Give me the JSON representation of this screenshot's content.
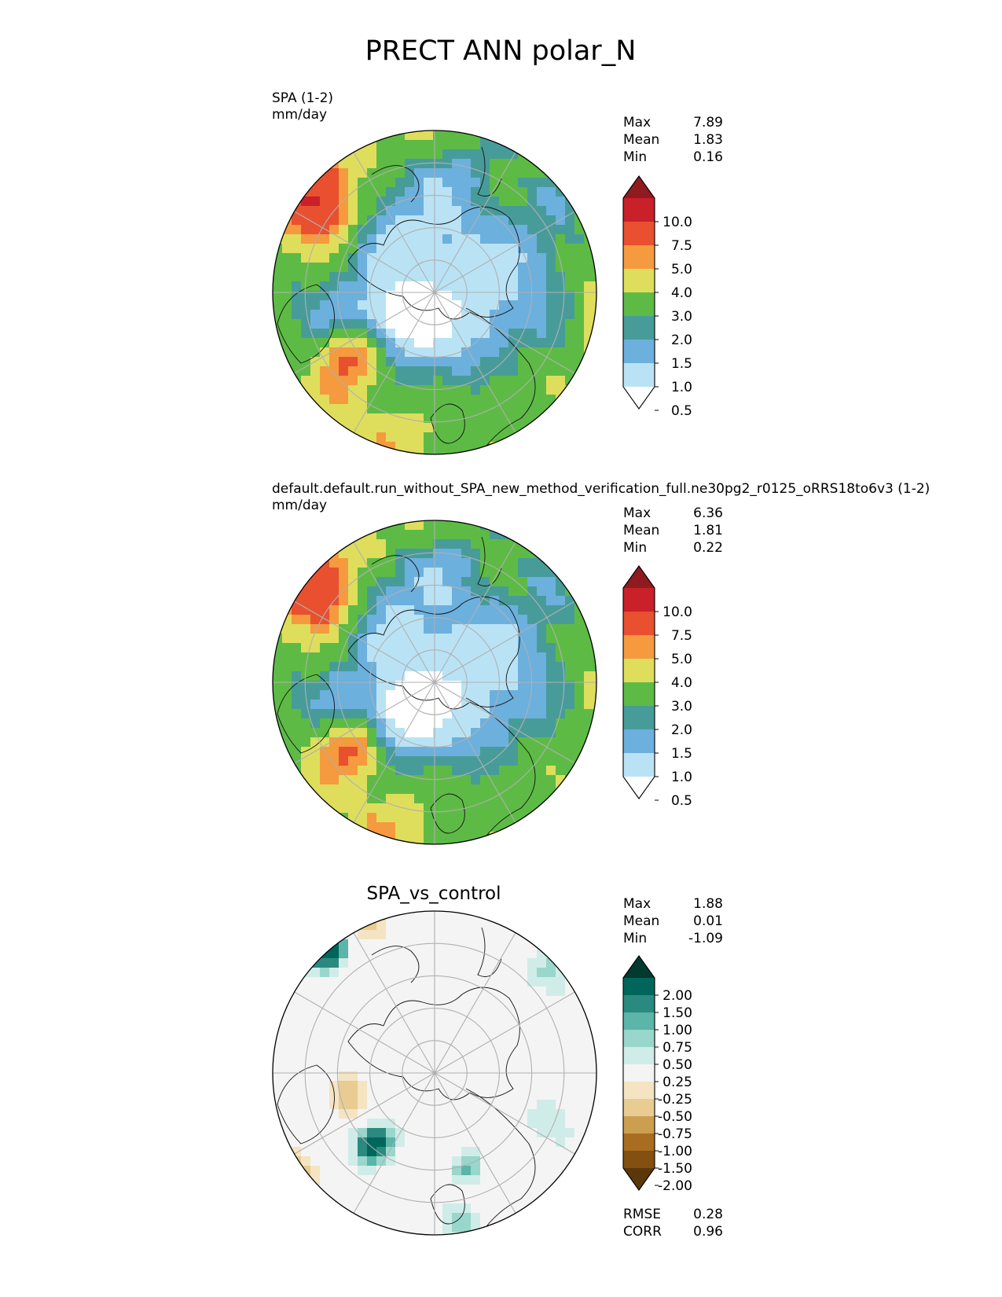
{
  "figure": {
    "title": "PRECT ANN polar_N"
  },
  "chart_data": [
    {
      "type": "heatmap",
      "projection": "north-polar-stereographic",
      "title": "SPA (1-2)",
      "units": "mm/day",
      "stats": [
        {
          "label": "Max",
          "value": "7.89"
        },
        {
          "label": "Mean",
          "value": "1.83"
        },
        {
          "label": "Min",
          "value": "0.16"
        }
      ],
      "colorbar": {
        "extend": "both",
        "levels": [
          "10.0",
          "7.5",
          "5.0",
          "4.0",
          "3.0",
          "2.0",
          "1.5",
          "1.0",
          "0.5"
        ],
        "colors": [
          "#8f1a1f",
          "#c9202a",
          "#e8502f",
          "#f59a3e",
          "#dede5c",
          "#5dbb45",
          "#479c9a",
          "#6cb0de",
          "#b9e3f5",
          "#ffffff"
        ]
      },
      "grid": true,
      "coastlines": true,
      "pattern": "spa"
    },
    {
      "type": "heatmap",
      "projection": "north-polar-stereographic",
      "title": "default.default.run_without_SPA_new_method_verification_full.ne30pg2_r0125_oRRS18to6v3 (1-2)",
      "units": "mm/day",
      "stats": [
        {
          "label": "Max",
          "value": "6.36"
        },
        {
          "label": "Mean",
          "value": "1.81"
        },
        {
          "label": "Min",
          "value": "0.22"
        }
      ],
      "colorbar": {
        "extend": "both",
        "levels": [
          "10.0",
          "7.5",
          "5.0",
          "4.0",
          "3.0",
          "2.0",
          "1.5",
          "1.0",
          "0.5"
        ],
        "colors": [
          "#8f1a1f",
          "#c9202a",
          "#e8502f",
          "#f59a3e",
          "#dede5c",
          "#5dbb45",
          "#479c9a",
          "#6cb0de",
          "#b9e3f5",
          "#ffffff"
        ]
      },
      "grid": true,
      "coastlines": true,
      "pattern": "control"
    },
    {
      "type": "heatmap",
      "projection": "north-polar-stereographic",
      "title": "SPA_vs_control",
      "units": "",
      "stats": [
        {
          "label": "Max",
          "value": "1.88"
        },
        {
          "label": "Mean",
          "value": "0.01"
        },
        {
          "label": "Min",
          "value": "-1.09"
        }
      ],
      "colorbar": {
        "extend": "both",
        "levels": [
          "2.00",
          "1.50",
          "1.00",
          "0.75",
          "0.50",
          "0.25",
          "-0.25",
          "-0.50",
          "-0.75",
          "-1.00",
          "-1.50",
          "-2.00"
        ],
        "colors": [
          "#023a30",
          "#00665c",
          "#2a8a80",
          "#5bb5a9",
          "#99d6cb",
          "#d0ece8",
          "#f4f4f4",
          "#f4e4c2",
          "#e8cc92",
          "#cc9e50",
          "#a86d21",
          "#845012",
          "#5c3709"
        ]
      },
      "metrics": [
        {
          "label": "RMSE",
          "value": "0.28"
        },
        {
          "label": "CORR",
          "value": "0.96"
        }
      ],
      "grid": true,
      "coastlines": true,
      "pattern": "diff"
    }
  ]
}
